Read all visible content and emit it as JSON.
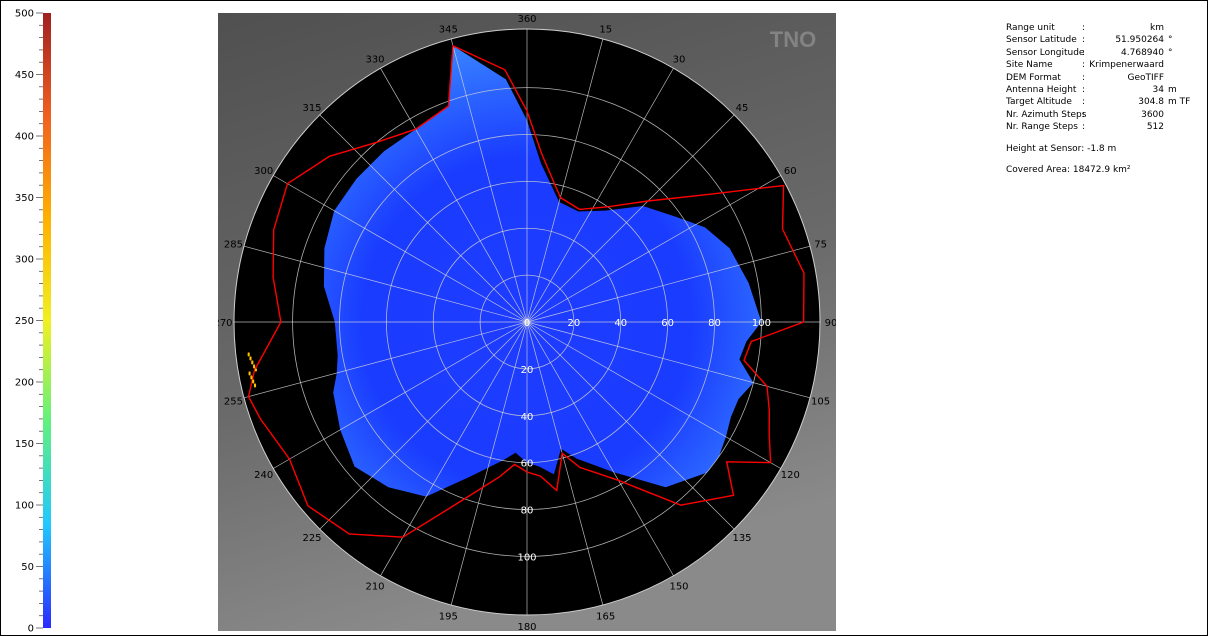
{
  "chart_data": {
    "type": "heatmap",
    "projection": "polar",
    "title": "",
    "watermark": "TNO",
    "colorbar": {
      "range": [
        0,
        500
      ],
      "ticks": [
        0,
        50,
        100,
        150,
        200,
        250,
        300,
        350,
        400,
        450,
        500
      ],
      "colors": [
        "#2a2aff",
        "#20c8ff",
        "#60f080",
        "#f0f020",
        "#ffb000",
        "#f06020",
        "#a02020"
      ]
    },
    "azimuth_ticks": [
      360,
      15,
      30,
      45,
      60,
      75,
      90,
      105,
      120,
      135,
      150,
      165,
      180,
      195,
      210,
      225,
      240,
      255,
      270,
      285,
      300,
      315,
      330,
      345
    ],
    "range_rings": [
      20,
      40,
      60,
      80,
      100
    ],
    "range_labels_east": [
      0,
      20,
      40,
      60,
      80,
      100
    ],
    "range_labels_south": [
      20,
      40,
      60,
      80,
      100
    ],
    "range_max": 125,
    "coverage_boundary": {
      "color": "#ff0000",
      "azimuth_deg": [
        345,
        340,
        330,
        320,
        310,
        300,
        290,
        280,
        270,
        260,
        255,
        250,
        240,
        230,
        220,
        210,
        200,
        190,
        185,
        180,
        175,
        170,
        165,
        160,
        150,
        140,
        130,
        125,
        120,
        115,
        110,
        105,
        100,
        95,
        90,
        80,
        70,
        62,
        55,
        45,
        35,
        25,
        15,
        5,
        0,
        355
      ],
      "range_km": [
        122,
        98,
        95,
        100,
        110,
        118,
        115,
        110,
        105,
        118,
        123,
        121,
        117,
        122,
        118,
        106,
        81,
        67,
        61,
        64,
        66,
        73,
        58,
        66,
        78,
        102,
        115,
        104,
        120,
        114,
        110,
        106,
        94,
        96,
        118,
        120,
        116,
        124,
        95,
        73,
        60,
        53,
        55,
        72,
        90,
        108
      ]
    },
    "coverage_fill": {
      "color_near": "#1e3cff",
      "color_far": "#3c8cff",
      "azimuth_deg": [
        345,
        340,
        330,
        320,
        310,
        300,
        290,
        280,
        270,
        260,
        255,
        250,
        240,
        230,
        220,
        210,
        200,
        190,
        185,
        180,
        175,
        170,
        165,
        160,
        150,
        140,
        130,
        125,
        120,
        115,
        110,
        105,
        100,
        95,
        90,
        80,
        70,
        62,
        55,
        45,
        35,
        25,
        15,
        5,
        0,
        355
      ],
      "range_km": [
        122,
        98,
        95,
        95,
        95,
        95,
        92,
        88,
        82,
        82,
        84,
        88,
        92,
        96,
        92,
        86,
        70,
        60,
        56,
        60,
        62,
        66,
        56,
        62,
        74,
        92,
        100,
        100,
        98,
        96,
        96,
        100,
        92,
        94,
        100,
        96,
        92,
        86,
        78,
        70,
        58,
        52,
        53,
        68,
        86,
        104
      ]
    },
    "target_patch": {
      "azimuth_deg": 260,
      "range_km": 119,
      "color": "#ffc000"
    }
  },
  "info": {
    "rows": [
      {
        "key": "Range unit",
        "value": "km",
        "unit": ""
      },
      {
        "key": "Sensor Latitude",
        "value": "51.950264",
        "unit": "°"
      },
      {
        "key": "Sensor Longitude",
        "value": "4.768940",
        "unit": "°"
      },
      {
        "key": "Site Name",
        "value": "Krimpenerwaard",
        "unit": ""
      },
      {
        "key": "DEM Format",
        "value": "GeoTIFF",
        "unit": ""
      },
      {
        "key": "Antenna Height",
        "value": "34",
        "unit": "m"
      },
      {
        "key": "Target Altitude",
        "value": "304.8",
        "unit": "m TF"
      },
      {
        "key": "Nr. Azimuth Steps",
        "value": "3600",
        "unit": ""
      },
      {
        "key": "Nr. Range Steps",
        "value": "512",
        "unit": ""
      }
    ],
    "height_at_sensor": "Height at Sensor: -1.8 m",
    "covered_area": "Covered Area: 18472.9 km²"
  }
}
